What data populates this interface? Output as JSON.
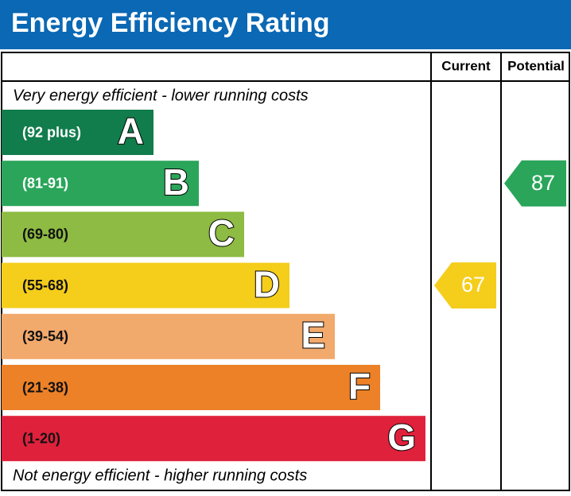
{
  "header": {
    "title": "Energy Efficiency Rating"
  },
  "columns": {
    "current": "Current",
    "potential": "Potential"
  },
  "top_note": "Very energy efficient - lower running costs",
  "bottom_note": "Not energy efficient - higher running costs",
  "bands": [
    {
      "range": "(92 plus)",
      "letter": "A",
      "color": "#117c4c",
      "range_color": "#ffffff"
    },
    {
      "range": "(81-91)",
      "letter": "B",
      "color": "#2aa55a",
      "range_color": "#ffffff"
    },
    {
      "range": "(69-80)",
      "letter": "C",
      "color": "#8dbb43",
      "range_color": "#111111"
    },
    {
      "range": "(55-68)",
      "letter": "D",
      "color": "#f5cd1b",
      "range_color": "#111111"
    },
    {
      "range": "(39-54)",
      "letter": "E",
      "color": "#f2a96c",
      "range_color": "#111111"
    },
    {
      "range": "(21-38)",
      "letter": "F",
      "color": "#ec8128",
      "range_color": "#111111"
    },
    {
      "range": "(1-20)",
      "letter": "G",
      "color": "#e0213c",
      "range_color": "#111111"
    }
  ],
  "ratings": {
    "current": 67,
    "potential": 87
  }
}
